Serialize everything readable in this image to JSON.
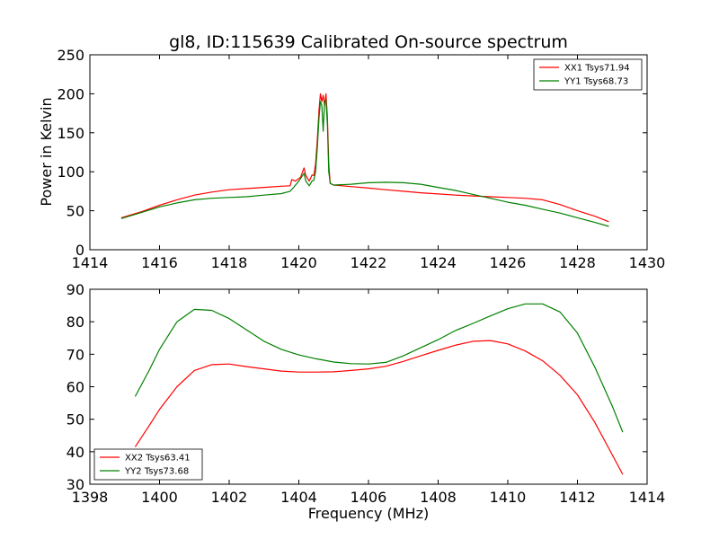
{
  "chart_data": [
    {
      "type": "line",
      "title": "gl8, ID:115639 Calibrated On-source spectrum",
      "xlabel": "",
      "ylabel": "Power in Kelvin",
      "xlim": [
        1414,
        1430
      ],
      "ylim": [
        0,
        250
      ],
      "xticks": [
        1414,
        1416,
        1418,
        1420,
        1422,
        1424,
        1426,
        1428,
        1430
      ],
      "yticks": [
        0,
        50,
        100,
        150,
        200,
        250
      ],
      "grid": false,
      "legend_position": "top-right",
      "series": [
        {
          "name": "XX1 Tsys71.94",
          "color": "#ff0000",
          "points": [
            [
              1414.9,
              41
            ],
            [
              1415.5,
              49
            ],
            [
              1416.0,
              57
            ],
            [
              1416.5,
              64
            ],
            [
              1417.0,
              70
            ],
            [
              1417.5,
              74
            ],
            [
              1418.0,
              77
            ],
            [
              1418.5,
              78.5
            ],
            [
              1419.0,
              80
            ],
            [
              1419.5,
              81.5
            ],
            [
              1419.75,
              82
            ],
            [
              1419.8,
              90
            ],
            [
              1419.9,
              88
            ],
            [
              1420.05,
              93
            ],
            [
              1420.15,
              105
            ],
            [
              1420.2,
              95
            ],
            [
              1420.3,
              88
            ],
            [
              1420.38,
              96
            ],
            [
              1420.43,
              95
            ],
            [
              1420.48,
              110
            ],
            [
              1420.53,
              140
            ],
            [
              1420.58,
              180
            ],
            [
              1420.62,
              200
            ],
            [
              1420.66,
              190
            ],
            [
              1420.7,
              198
            ],
            [
              1420.74,
              185
            ],
            [
              1420.78,
              200
            ],
            [
              1420.82,
              170
            ],
            [
              1420.86,
              110
            ],
            [
              1420.9,
              85
            ],
            [
              1421.0,
              83
            ],
            [
              1421.5,
              81
            ],
            [
              1422.0,
              79
            ],
            [
              1422.5,
              77
            ],
            [
              1423.0,
              75
            ],
            [
              1423.5,
              73
            ],
            [
              1424.0,
              71.5
            ],
            [
              1424.5,
              70
            ],
            [
              1425.0,
              69
            ],
            [
              1425.5,
              68
            ],
            [
              1426.0,
              67
            ],
            [
              1426.5,
              66
            ],
            [
              1427.0,
              64
            ],
            [
              1427.5,
              58
            ],
            [
              1428.0,
              50
            ],
            [
              1428.5,
              43
            ],
            [
              1428.9,
              36
            ]
          ]
        },
        {
          "name": "YY1 Tsys68.73",
          "color": "#008000",
          "points": [
            [
              1414.9,
              40
            ],
            [
              1415.5,
              48
            ],
            [
              1416.0,
              55
            ],
            [
              1416.5,
              60
            ],
            [
              1417.0,
              64
            ],
            [
              1417.5,
              66
            ],
            [
              1418.0,
              67
            ],
            [
              1418.5,
              68
            ],
            [
              1419.0,
              70
            ],
            [
              1419.5,
              72
            ],
            [
              1419.75,
              75
            ],
            [
              1419.85,
              80
            ],
            [
              1420.0,
              88
            ],
            [
              1420.15,
              98
            ],
            [
              1420.2,
              88
            ],
            [
              1420.3,
              82
            ],
            [
              1420.38,
              88
            ],
            [
              1420.43,
              89
            ],
            [
              1420.48,
              100
            ],
            [
              1420.53,
              130
            ],
            [
              1420.58,
              170
            ],
            [
              1420.62,
              190
            ],
            [
              1420.66,
              185
            ],
            [
              1420.7,
              152
            ],
            [
              1420.74,
              190
            ],
            [
              1420.78,
              192
            ],
            [
              1420.82,
              160
            ],
            [
              1420.86,
              100
            ],
            [
              1420.9,
              85
            ],
            [
              1421.0,
              83
            ],
            [
              1421.5,
              84
            ],
            [
              1422.0,
              86
            ],
            [
              1422.5,
              86.5
            ],
            [
              1423.0,
              86
            ],
            [
              1423.5,
              84
            ],
            [
              1424.0,
              80
            ],
            [
              1424.5,
              76
            ],
            [
              1425.0,
              71
            ],
            [
              1425.5,
              66
            ],
            [
              1426.0,
              61
            ],
            [
              1426.5,
              57
            ],
            [
              1427.0,
              52
            ],
            [
              1427.5,
              47
            ],
            [
              1428.0,
              41
            ],
            [
              1428.5,
              35
            ],
            [
              1428.9,
              30
            ]
          ]
        }
      ]
    },
    {
      "type": "line",
      "title": "",
      "xlabel": "Frequency (MHz)",
      "ylabel": "",
      "xlim": [
        1398,
        1414
      ],
      "ylim": [
        30,
        90
      ],
      "xticks": [
        1398,
        1400,
        1402,
        1404,
        1406,
        1408,
        1410,
        1412,
        1414
      ],
      "yticks": [
        30,
        40,
        50,
        60,
        70,
        80,
        90
      ],
      "grid": false,
      "legend_position": "bottom-left",
      "series": [
        {
          "name": "XX2 Tsys63.41",
          "color": "#ff0000",
          "points": [
            [
              1399.3,
              41.5
            ],
            [
              1399.7,
              48
            ],
            [
              1400.0,
              53
            ],
            [
              1400.5,
              60
            ],
            [
              1401.0,
              65
            ],
            [
              1401.5,
              66.8
            ],
            [
              1402.0,
              67
            ],
            [
              1402.5,
              66.2
            ],
            [
              1403.0,
              65.5
            ],
            [
              1403.5,
              64.8
            ],
            [
              1404.0,
              64.5
            ],
            [
              1404.5,
              64.5
            ],
            [
              1405.0,
              64.6
            ],
            [
              1405.5,
              65
            ],
            [
              1406.0,
              65.5
            ],
            [
              1406.5,
              66.3
            ],
            [
              1407.0,
              67.8
            ],
            [
              1407.5,
              69.5
            ],
            [
              1408.0,
              71.2
            ],
            [
              1408.5,
              72.8
            ],
            [
              1409.0,
              74
            ],
            [
              1409.5,
              74.2
            ],
            [
              1410.0,
              73.2
            ],
            [
              1410.5,
              71
            ],
            [
              1411.0,
              68
            ],
            [
              1411.5,
              63.5
            ],
            [
              1412.0,
              57.5
            ],
            [
              1412.5,
              49
            ],
            [
              1413.0,
              39
            ],
            [
              1413.3,
              33
            ]
          ]
        },
        {
          "name": "YY2 Tsys73.68",
          "color": "#008000",
          "points": [
            [
              1399.3,
              57
            ],
            [
              1399.7,
              65
            ],
            [
              1400.0,
              71.5
            ],
            [
              1400.5,
              80
            ],
            [
              1401.0,
              83.8
            ],
            [
              1401.5,
              83.5
            ],
            [
              1402.0,
              81
            ],
            [
              1402.5,
              77.5
            ],
            [
              1403.0,
              74
            ],
            [
              1403.5,
              71.5
            ],
            [
              1404.0,
              69.8
            ],
            [
              1404.5,
              68.6
            ],
            [
              1405.0,
              67.6
            ],
            [
              1405.5,
              67.1
            ],
            [
              1406.0,
              67
            ],
            [
              1406.5,
              67.5
            ],
            [
              1407.0,
              69.5
            ],
            [
              1407.5,
              72
            ],
            [
              1408.0,
              74.5
            ],
            [
              1408.5,
              77.3
            ],
            [
              1409.0,
              79.5
            ],
            [
              1409.5,
              81.8
            ],
            [
              1410.0,
              84
            ],
            [
              1410.5,
              85.5
            ],
            [
              1411.0,
              85.5
            ],
            [
              1411.5,
              83
            ],
            [
              1412.0,
              76.5
            ],
            [
              1412.5,
              66
            ],
            [
              1413.0,
              54
            ],
            [
              1413.3,
              46
            ]
          ]
        }
      ]
    }
  ]
}
